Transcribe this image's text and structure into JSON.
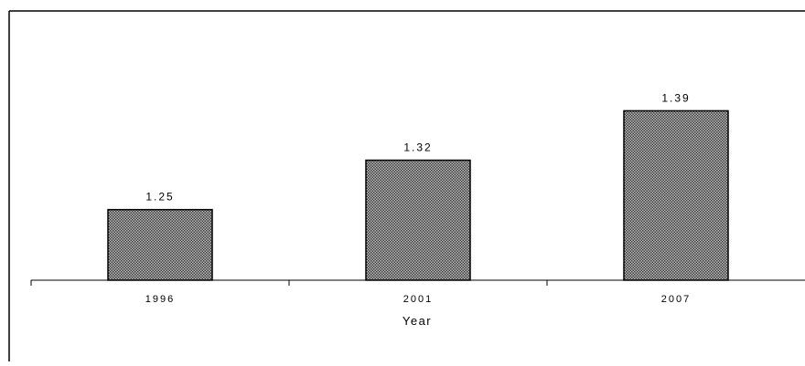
{
  "chart_data": {
    "type": "bar",
    "title": "",
    "xlabel": "Year",
    "ylabel": "",
    "categories": [
      "1996",
      "2001",
      "2007"
    ],
    "values": [
      1.25,
      1.32,
      1.39
    ],
    "data_labels": [
      "1.25",
      "1.32",
      "1.39"
    ],
    "ylim": [
      1.15,
      1.45
    ],
    "grid": false,
    "legend": "none",
    "bar_fill": "#8a8a8a",
    "bar_stroke": "#000000"
  }
}
